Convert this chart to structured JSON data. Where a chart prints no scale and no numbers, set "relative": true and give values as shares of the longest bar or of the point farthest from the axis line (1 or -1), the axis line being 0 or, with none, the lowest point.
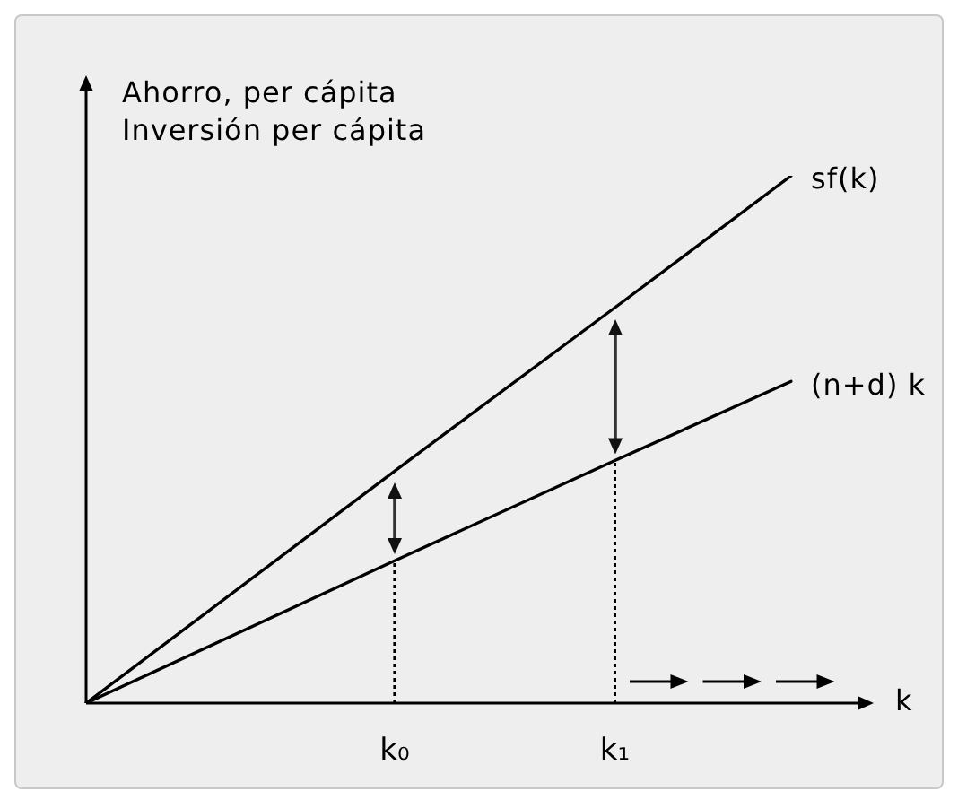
{
  "chart_data": {
    "type": "line",
    "relative": true,
    "xlabel": "k",
    "ylabel": "Ahorro, per cápita\nInversión per cápita",
    "categories": [
      null,
      null,
      null,
      null,
      null,
      null,
      null,
      "k₀",
      null,
      null,
      null,
      null,
      "k₁",
      null,
      null,
      null,
      null
    ],
    "series": [
      {
        "name": "sf(k)",
        "color": "#000000",
        "values": [
          0,
          null,
          null,
          null,
          null,
          null,
          null,
          0.44,
          null,
          null,
          null,
          null,
          0.75,
          null,
          null,
          null,
          1
        ]
      },
      {
        "name": "(n+d) k",
        "color": "#000000",
        "values": [
          0,
          null,
          null,
          null,
          null,
          null,
          null,
          0.27,
          null,
          null,
          null,
          null,
          0.46,
          null,
          null,
          null,
          0.61
        ]
      }
    ],
    "ref_lines": [
      {
        "axis": "x",
        "value": "k₀",
        "line_style": "dotted",
        "color": "#000000"
      },
      {
        "axis": "x",
        "value": "k₁",
        "line_style": "dotted",
        "color": "#000000"
      }
    ],
    "marker": "none",
    "line_style": "solid"
  }
}
